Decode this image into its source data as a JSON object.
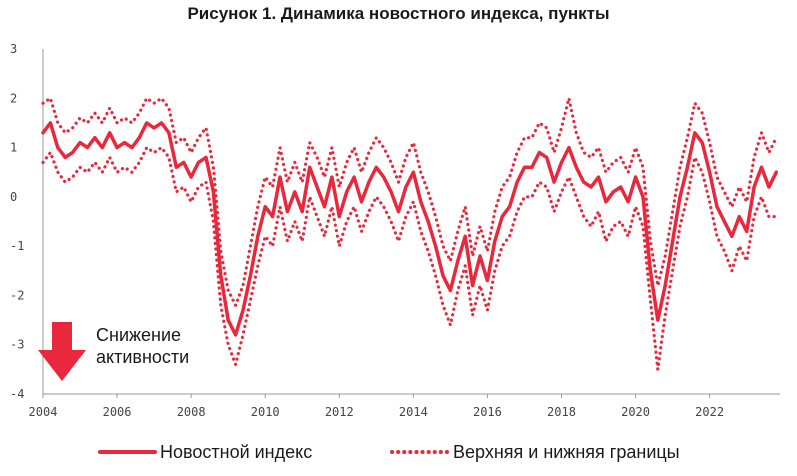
{
  "colors": {
    "accent": "#e8283c",
    "axis": "#888888",
    "text": "#1a1a1a"
  },
  "chart_data": {
    "type": "line",
    "title": "Рисунок 1. Динамика новостного индекса, пункты",
    "xlabel": "",
    "ylabel": "",
    "xlim": [
      2004,
      2023.9
    ],
    "ylim": [
      -4,
      3
    ],
    "y_ticks": [
      "3",
      "2",
      "1",
      "0",
      "-1",
      "-2",
      "-3",
      "-4"
    ],
    "x_ticks": [
      "2004",
      "2006",
      "2008",
      "2010",
      "2012",
      "2014",
      "2016",
      "2018",
      "2020",
      "2022"
    ],
    "grid": false,
    "legend_position": "bottom",
    "annotation": {
      "line1": "Снижение",
      "line2": "активности",
      "icon": "arrow-down-icon"
    },
    "series": [
      {
        "name": "Новостной индекс",
        "style": "solid",
        "points": [
          [
            2004.0,
            1.3
          ],
          [
            2004.2,
            1.5
          ],
          [
            2004.4,
            1.0
          ],
          [
            2004.6,
            0.8
          ],
          [
            2004.8,
            0.9
          ],
          [
            2005.0,
            1.1
          ],
          [
            2005.2,
            1.0
          ],
          [
            2005.4,
            1.2
          ],
          [
            2005.6,
            1.0
          ],
          [
            2005.8,
            1.3
          ],
          [
            2006.0,
            1.0
          ],
          [
            2006.2,
            1.1
          ],
          [
            2006.4,
            1.0
          ],
          [
            2006.6,
            1.2
          ],
          [
            2006.8,
            1.5
          ],
          [
            2007.0,
            1.4
          ],
          [
            2007.2,
            1.5
          ],
          [
            2007.4,
            1.3
          ],
          [
            2007.6,
            0.6
          ],
          [
            2007.8,
            0.7
          ],
          [
            2008.0,
            0.4
          ],
          [
            2008.2,
            0.7
          ],
          [
            2008.4,
            0.8
          ],
          [
            2008.6,
            0.1
          ],
          [
            2008.8,
            -1.6
          ],
          [
            2009.0,
            -2.5
          ],
          [
            2009.2,
            -2.8
          ],
          [
            2009.4,
            -2.3
          ],
          [
            2009.6,
            -1.6
          ],
          [
            2009.8,
            -0.8
          ],
          [
            2010.0,
            -0.2
          ],
          [
            2010.2,
            -0.4
          ],
          [
            2010.4,
            0.4
          ],
          [
            2010.6,
            -0.3
          ],
          [
            2010.8,
            0.1
          ],
          [
            2011.0,
            -0.3
          ],
          [
            2011.2,
            0.6
          ],
          [
            2011.4,
            0.2
          ],
          [
            2011.6,
            -0.2
          ],
          [
            2011.8,
            0.4
          ],
          [
            2012.0,
            -0.4
          ],
          [
            2012.2,
            0.1
          ],
          [
            2012.4,
            0.4
          ],
          [
            2012.6,
            -0.1
          ],
          [
            2012.8,
            0.3
          ],
          [
            2013.0,
            0.6
          ],
          [
            2013.2,
            0.4
          ],
          [
            2013.4,
            0.1
          ],
          [
            2013.6,
            -0.3
          ],
          [
            2013.8,
            0.2
          ],
          [
            2014.0,
            0.5
          ],
          [
            2014.2,
            -0.1
          ],
          [
            2014.4,
            -0.5
          ],
          [
            2014.6,
            -1.0
          ],
          [
            2014.8,
            -1.6
          ],
          [
            2015.0,
            -1.9
          ],
          [
            2015.2,
            -1.3
          ],
          [
            2015.4,
            -0.8
          ],
          [
            2015.6,
            -1.8
          ],
          [
            2015.8,
            -1.2
          ],
          [
            2016.0,
            -1.7
          ],
          [
            2016.2,
            -0.9
          ],
          [
            2016.4,
            -0.4
          ],
          [
            2016.6,
            -0.2
          ],
          [
            2016.8,
            0.3
          ],
          [
            2017.0,
            0.6
          ],
          [
            2017.2,
            0.6
          ],
          [
            2017.4,
            0.9
          ],
          [
            2017.6,
            0.8
          ],
          [
            2017.8,
            0.3
          ],
          [
            2018.0,
            0.7
          ],
          [
            2018.2,
            1.0
          ],
          [
            2018.4,
            0.6
          ],
          [
            2018.6,
            0.3
          ],
          [
            2018.8,
            0.2
          ],
          [
            2019.0,
            0.4
          ],
          [
            2019.2,
            -0.1
          ],
          [
            2019.4,
            0.1
          ],
          [
            2019.6,
            0.2
          ],
          [
            2019.8,
            -0.1
          ],
          [
            2020.0,
            0.4
          ],
          [
            2020.2,
            0.0
          ],
          [
            2020.4,
            -1.5
          ],
          [
            2020.6,
            -2.5
          ],
          [
            2020.8,
            -1.8
          ],
          [
            2021.0,
            -0.9
          ],
          [
            2021.2,
            0.0
          ],
          [
            2021.4,
            0.6
          ],
          [
            2021.6,
            1.3
          ],
          [
            2021.8,
            1.1
          ],
          [
            2022.0,
            0.5
          ],
          [
            2022.2,
            -0.2
          ],
          [
            2022.4,
            -0.5
          ],
          [
            2022.6,
            -0.8
          ],
          [
            2022.8,
            -0.4
          ],
          [
            2023.0,
            -0.7
          ],
          [
            2023.2,
            0.2
          ],
          [
            2023.4,
            0.6
          ],
          [
            2023.6,
            0.2
          ],
          [
            2023.8,
            0.5
          ]
        ]
      },
      {
        "name": "Верхняя и нижняя границы",
        "style": "dotted",
        "points": [
          [
            2004.0,
            1.9
          ],
          [
            2004.2,
            2.0
          ],
          [
            2004.4,
            1.5
          ],
          [
            2004.6,
            1.3
          ],
          [
            2004.8,
            1.4
          ],
          [
            2005.0,
            1.6
          ],
          [
            2005.2,
            1.5
          ],
          [
            2005.4,
            1.7
          ],
          [
            2005.6,
            1.5
          ],
          [
            2005.8,
            1.8
          ],
          [
            2006.0,
            1.5
          ],
          [
            2006.2,
            1.6
          ],
          [
            2006.4,
            1.5
          ],
          [
            2006.6,
            1.7
          ],
          [
            2006.8,
            2.0
          ],
          [
            2007.0,
            1.9
          ],
          [
            2007.2,
            2.0
          ],
          [
            2007.4,
            1.8
          ],
          [
            2007.6,
            1.1
          ],
          [
            2007.8,
            1.2
          ],
          [
            2008.0,
            0.9
          ],
          [
            2008.2,
            1.2
          ],
          [
            2008.4,
            1.4
          ],
          [
            2008.6,
            0.6
          ],
          [
            2008.8,
            -1.1
          ],
          [
            2009.0,
            -1.9
          ],
          [
            2009.2,
            -2.2
          ],
          [
            2009.4,
            -1.8
          ],
          [
            2009.6,
            -1.0
          ],
          [
            2009.8,
            -0.2
          ],
          [
            2010.0,
            0.4
          ],
          [
            2010.2,
            0.2
          ],
          [
            2010.4,
            1.0
          ],
          [
            2010.6,
            0.3
          ],
          [
            2010.8,
            0.7
          ],
          [
            2011.0,
            0.3
          ],
          [
            2011.2,
            1.1
          ],
          [
            2011.4,
            0.8
          ],
          [
            2011.6,
            0.4
          ],
          [
            2011.8,
            1.0
          ],
          [
            2012.0,
            0.2
          ],
          [
            2012.2,
            0.7
          ],
          [
            2012.4,
            1.0
          ],
          [
            2012.6,
            0.5
          ],
          [
            2012.8,
            0.9
          ],
          [
            2013.0,
            1.2
          ],
          [
            2013.2,
            1.0
          ],
          [
            2013.4,
            0.7
          ],
          [
            2013.6,
            0.3
          ],
          [
            2013.8,
            0.8
          ],
          [
            2014.0,
            1.1
          ],
          [
            2014.2,
            0.5
          ],
          [
            2014.4,
            0.1
          ],
          [
            2014.6,
            -0.4
          ],
          [
            2014.8,
            -1.0
          ],
          [
            2015.0,
            -1.3
          ],
          [
            2015.2,
            -0.7
          ],
          [
            2015.4,
            -0.2
          ],
          [
            2015.6,
            -1.2
          ],
          [
            2015.8,
            -0.6
          ],
          [
            2016.0,
            -1.1
          ],
          [
            2016.2,
            -0.3
          ],
          [
            2016.4,
            0.2
          ],
          [
            2016.6,
            0.4
          ],
          [
            2016.8,
            0.9
          ],
          [
            2017.0,
            1.2
          ],
          [
            2017.2,
            1.2
          ],
          [
            2017.4,
            1.5
          ],
          [
            2017.6,
            1.4
          ],
          [
            2017.8,
            0.9
          ],
          [
            2018.0,
            1.4
          ],
          [
            2018.2,
            2.0
          ],
          [
            2018.4,
            1.3
          ],
          [
            2018.6,
            0.9
          ],
          [
            2018.8,
            0.8
          ],
          [
            2019.0,
            1.0
          ],
          [
            2019.2,
            0.5
          ],
          [
            2019.4,
            0.7
          ],
          [
            2019.6,
            0.8
          ],
          [
            2019.8,
            0.5
          ],
          [
            2020.0,
            1.0
          ],
          [
            2020.2,
            0.6
          ],
          [
            2020.4,
            -0.9
          ],
          [
            2020.6,
            -1.8
          ],
          [
            2020.8,
            -1.2
          ],
          [
            2021.0,
            -0.3
          ],
          [
            2021.2,
            0.6
          ],
          [
            2021.4,
            1.2
          ],
          [
            2021.6,
            1.9
          ],
          [
            2021.8,
            1.7
          ],
          [
            2022.0,
            1.1
          ],
          [
            2022.2,
            0.4
          ],
          [
            2022.4,
            0.1
          ],
          [
            2022.6,
            -0.2
          ],
          [
            2022.8,
            0.2
          ],
          [
            2023.0,
            -0.1
          ],
          [
            2023.2,
            0.8
          ],
          [
            2023.4,
            1.3
          ],
          [
            2023.6,
            0.9
          ],
          [
            2023.8,
            1.2
          ]
        ]
      },
      {
        "name": "",
        "style": "dotted",
        "points": [
          [
            2004.0,
            0.7
          ],
          [
            2004.2,
            0.9
          ],
          [
            2004.4,
            0.5
          ],
          [
            2004.6,
            0.3
          ],
          [
            2004.8,
            0.4
          ],
          [
            2005.0,
            0.6
          ],
          [
            2005.2,
            0.5
          ],
          [
            2005.4,
            0.7
          ],
          [
            2005.6,
            0.5
          ],
          [
            2005.8,
            0.8
          ],
          [
            2006.0,
            0.5
          ],
          [
            2006.2,
            0.6
          ],
          [
            2006.4,
            0.5
          ],
          [
            2006.6,
            0.7
          ],
          [
            2006.8,
            1.0
          ],
          [
            2007.0,
            0.9
          ],
          [
            2007.2,
            1.0
          ],
          [
            2007.4,
            0.8
          ],
          [
            2007.6,
            0.1
          ],
          [
            2007.8,
            0.2
          ],
          [
            2008.0,
            -0.1
          ],
          [
            2008.2,
            0.2
          ],
          [
            2008.4,
            0.3
          ],
          [
            2008.6,
            -0.5
          ],
          [
            2008.8,
            -2.2
          ],
          [
            2009.0,
            -3.0
          ],
          [
            2009.2,
            -3.4
          ],
          [
            2009.4,
            -2.8
          ],
          [
            2009.6,
            -2.1
          ],
          [
            2009.8,
            -1.4
          ],
          [
            2010.0,
            -0.8
          ],
          [
            2010.2,
            -1.0
          ],
          [
            2010.4,
            -0.2
          ],
          [
            2010.6,
            -0.9
          ],
          [
            2010.8,
            -0.5
          ],
          [
            2011.0,
            -0.9
          ],
          [
            2011.2,
            0.0
          ],
          [
            2011.4,
            -0.4
          ],
          [
            2011.6,
            -0.8
          ],
          [
            2011.8,
            -0.2
          ],
          [
            2012.0,
            -1.0
          ],
          [
            2012.2,
            -0.5
          ],
          [
            2012.4,
            -0.2
          ],
          [
            2012.6,
            -0.7
          ],
          [
            2012.8,
            -0.3
          ],
          [
            2013.0,
            0.0
          ],
          [
            2013.2,
            -0.2
          ],
          [
            2013.4,
            -0.5
          ],
          [
            2013.6,
            -0.9
          ],
          [
            2013.8,
            -0.4
          ],
          [
            2014.0,
            -0.1
          ],
          [
            2014.2,
            -0.7
          ],
          [
            2014.4,
            -1.1
          ],
          [
            2014.6,
            -1.6
          ],
          [
            2014.8,
            -2.2
          ],
          [
            2015.0,
            -2.6
          ],
          [
            2015.2,
            -1.9
          ],
          [
            2015.4,
            -1.4
          ],
          [
            2015.6,
            -2.4
          ],
          [
            2015.8,
            -1.8
          ],
          [
            2016.0,
            -2.3
          ],
          [
            2016.2,
            -1.5
          ],
          [
            2016.4,
            -1.0
          ],
          [
            2016.6,
            -0.8
          ],
          [
            2016.8,
            -0.3
          ],
          [
            2017.0,
            0.0
          ],
          [
            2017.2,
            0.0
          ],
          [
            2017.4,
            0.3
          ],
          [
            2017.6,
            0.2
          ],
          [
            2017.8,
            -0.3
          ],
          [
            2018.0,
            0.1
          ],
          [
            2018.2,
            0.4
          ],
          [
            2018.4,
            0.0
          ],
          [
            2018.6,
            -0.4
          ],
          [
            2018.8,
            -0.6
          ],
          [
            2019.0,
            -0.3
          ],
          [
            2019.2,
            -0.9
          ],
          [
            2019.4,
            -0.6
          ],
          [
            2019.6,
            -0.5
          ],
          [
            2019.8,
            -0.8
          ],
          [
            2020.0,
            -0.2
          ],
          [
            2020.2,
            -0.6
          ],
          [
            2020.4,
            -2.1
          ],
          [
            2020.6,
            -3.5
          ],
          [
            2020.8,
            -2.4
          ],
          [
            2021.0,
            -1.5
          ],
          [
            2021.2,
            -0.6
          ],
          [
            2021.4,
            0.0
          ],
          [
            2021.6,
            0.8
          ],
          [
            2021.8,
            0.5
          ],
          [
            2022.0,
            -0.1
          ],
          [
            2022.2,
            -0.8
          ],
          [
            2022.4,
            -1.1
          ],
          [
            2022.6,
            -1.5
          ],
          [
            2022.8,
            -1.0
          ],
          [
            2023.0,
            -1.3
          ],
          [
            2023.2,
            -0.4
          ],
          [
            2023.4,
            0.0
          ],
          [
            2023.6,
            -0.4
          ],
          [
            2023.8,
            -0.4
          ]
        ]
      }
    ]
  }
}
